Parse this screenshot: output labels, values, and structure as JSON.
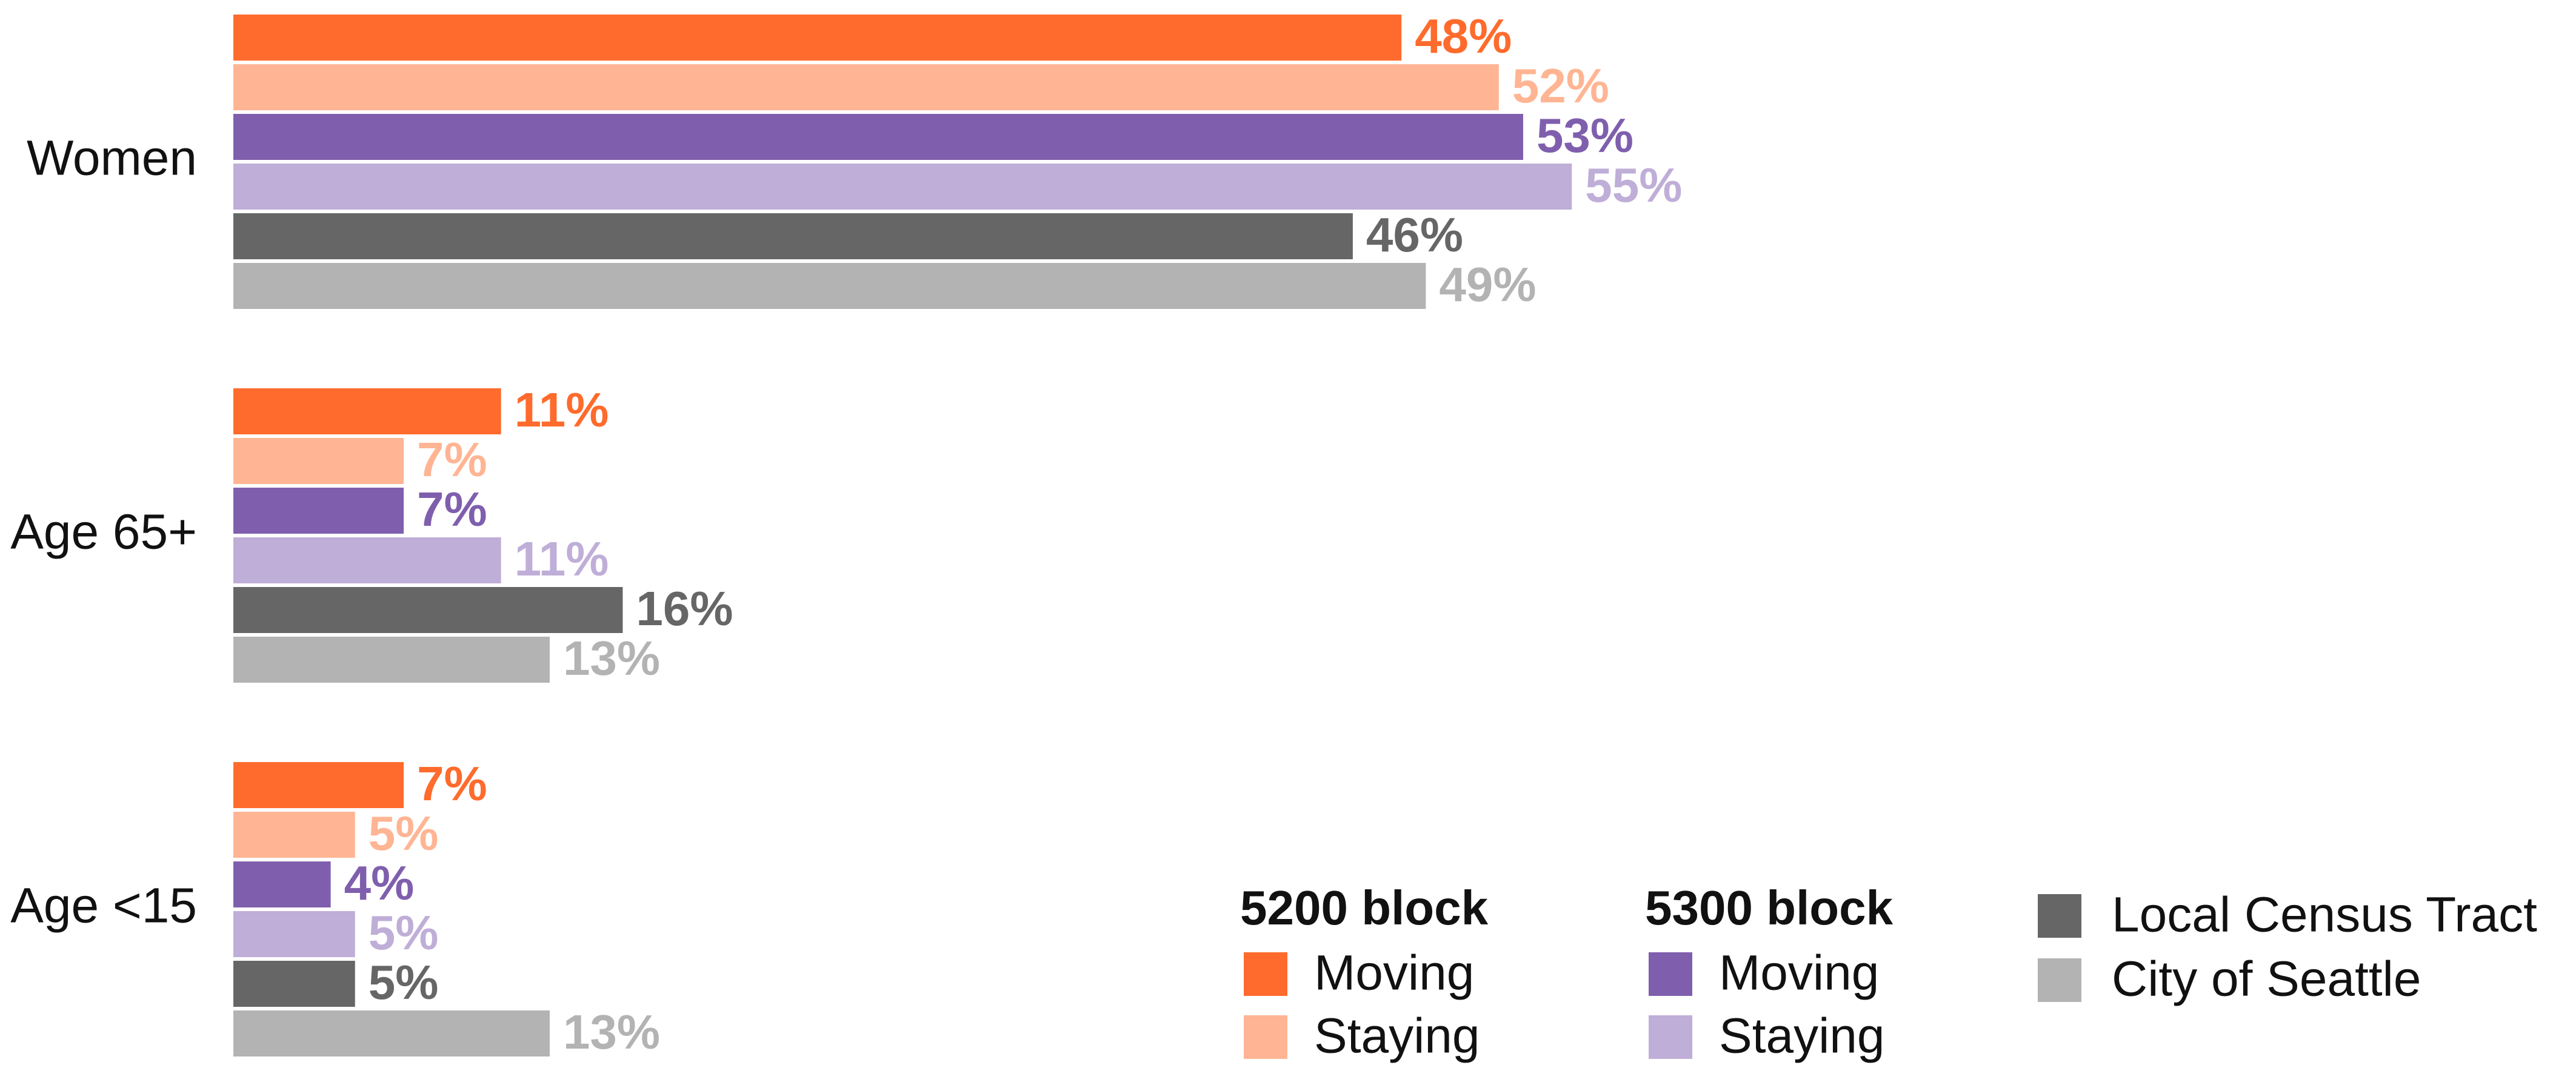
{
  "chart_data": {
    "type": "hbar",
    "categories": [
      "Women",
      "Age 65+",
      "Age <15"
    ],
    "series": [
      {
        "name": "Moving",
        "group": "5200 block",
        "color": "#ff6b2c",
        "values": [
          48,
          11,
          7
        ],
        "value_labels": [
          "48%",
          "11%",
          "7%"
        ]
      },
      {
        "name": "Staying",
        "group": "5200 block",
        "color": "#ffb593",
        "values": [
          52,
          7,
          5
        ],
        "value_labels": [
          "52%",
          "7%",
          "5%"
        ]
      },
      {
        "name": "Moving",
        "group": "5300 block",
        "color": "#7f5fad",
        "values": [
          53,
          7,
          4
        ],
        "value_labels": [
          "53%",
          "7%",
          "4%"
        ]
      },
      {
        "name": "Staying",
        "group": "5300 block",
        "color": "#bfaed7",
        "values": [
          55,
          11,
          5
        ],
        "value_labels": [
          "55%",
          "11%",
          "5%"
        ]
      },
      {
        "name": "Local Census Tract",
        "color": "#666666",
        "values": [
          46,
          16,
          5
        ],
        "value_labels": [
          "46%",
          "16%",
          "5%"
        ]
      },
      {
        "name": "City of Seattle",
        "color": "#b3b3b3",
        "values": [
          49,
          13,
          13
        ],
        "value_labels": [
          "49%",
          "13%",
          "13%"
        ]
      }
    ]
  }
}
